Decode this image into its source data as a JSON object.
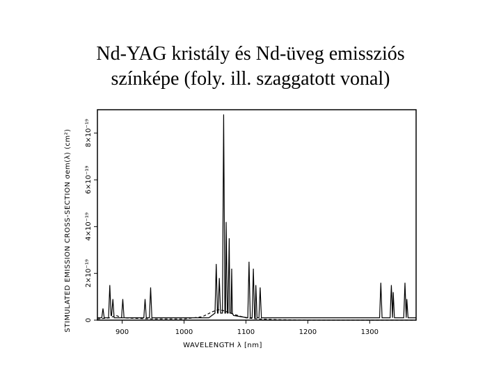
{
  "chart_data": {
    "type": "line",
    "title": [
      "Nd-YAG kristály és Nd-üveg emissziós",
      "színképe (foly. ill. szaggatott vonal)"
    ],
    "x_label": "WAVELENGTH  λ  [nm]",
    "y_label": "STIMULATED EMISSION CROSS-SECTION  σem(λ)  (cm²)",
    "xlim": [
      860,
      1375
    ],
    "ylim": [
      0,
      9
    ],
    "xticks": [
      900,
      1000,
      1100,
      1200,
      1300
    ],
    "yticks": [
      0,
      {
        "value": 2,
        "label": "2×10⁻¹⁹"
      },
      {
        "value": 4,
        "label": "4×10⁻¹⁹"
      },
      {
        "value": 6,
        "label": "6×10⁻¹⁹"
      },
      {
        "value": 8,
        "label": "8×10⁻¹⁹"
      }
    ],
    "series": [
      {
        "color": "#000000",
        "line_style": "solid",
        "x": [
          860,
          867,
          869,
          871,
          878,
          880,
          882,
          883,
          885,
          887,
          899,
          901,
          903,
          935,
          937,
          939,
          944,
          946,
          948,
          1040,
          1050,
          1052,
          1054,
          1055,
          1057,
          1059,
          1062,
          1064,
          1066,
          1067,
          1068,
          1070,
          1071,
          1073,
          1074,
          1076,
          1077,
          1078,
          1080,
          1103,
          1105,
          1107,
          1110,
          1112,
          1114,
          1115,
          1116,
          1118,
          1121,
          1123,
          1125,
          1316,
          1318,
          1320,
          1333,
          1335,
          1337,
          1338,
          1340,
          1355,
          1357,
          1359,
          1360,
          1362,
          1375
        ],
        "values": [
          0.1,
          0.1,
          0.5,
          0.1,
          0.1,
          1.5,
          0.2,
          0.2,
          0.9,
          0.1,
          0.1,
          0.9,
          0.1,
          0.1,
          0.9,
          0.1,
          0.1,
          1.4,
          0.1,
          0.1,
          0.3,
          2.4,
          0.3,
          0.3,
          1.8,
          0.3,
          0.3,
          8.8,
          0.3,
          0.3,
          4.2,
          0.3,
          0.3,
          3.5,
          0.3,
          0.3,
          2.2,
          0.3,
          0.2,
          0.1,
          2.5,
          0.1,
          0.1,
          2.2,
          0.1,
          0.1,
          1.5,
          0.1,
          0.1,
          1.4,
          0.1,
          0.1,
          1.6,
          0.1,
          0.1,
          1.5,
          0.1,
          1.2,
          0.1,
          0.1,
          1.6,
          0.1,
          0.9,
          0.1,
          0.1
        ]
      },
      {
        "color": "#000000",
        "line_style": "dashed",
        "x": [
          860,
          880,
          890,
          900,
          950,
          1000,
          1030,
          1045,
          1055,
          1065,
          1080,
          1100,
          1120,
          1150,
          1200,
          1300,
          1375
        ],
        "values": [
          0.05,
          0.1,
          0.2,
          0.1,
          0.05,
          0.05,
          0.15,
          0.35,
          0.45,
          0.4,
          0.25,
          0.1,
          0.05,
          0.02,
          0,
          0,
          0
        ]
      }
    ]
  }
}
